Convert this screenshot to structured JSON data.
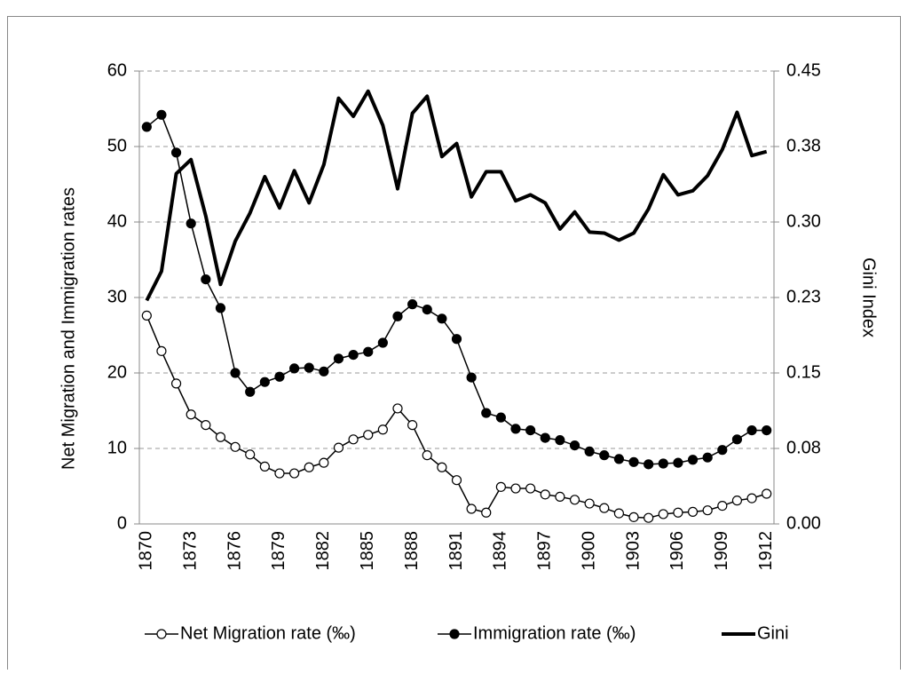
{
  "chart_data": {
    "type": "line",
    "categories": [
      "1870",
      null,
      null,
      "1873",
      null,
      null,
      "1876",
      null,
      null,
      "1879",
      null,
      null,
      "1882",
      null,
      null,
      "1885",
      null,
      null,
      "1888",
      null,
      null,
      "1891",
      null,
      null,
      "1894",
      null,
      null,
      "1897",
      null,
      null,
      "1900",
      null,
      null,
      "1903",
      null,
      null,
      "1906",
      null,
      null,
      "1909",
      null,
      null,
      "1912"
    ],
    "y_label": "Net Migration and Immigration rates",
    "y2_label": "Gini Index",
    "ylim": [
      0,
      60
    ],
    "yticks": [
      0,
      10,
      20,
      30,
      40,
      50,
      60
    ],
    "y2lim": [
      0,
      0.45
    ],
    "y2ticks": [
      {
        "value": 0,
        "label": "0.00"
      },
      {
        "value": 0.075,
        "label": "0.08"
      },
      0.15,
      {
        "value": 0.225,
        "label": "0.23"
      },
      {
        "value": 0.3,
        "label": "0.30"
      },
      {
        "value": 0.375,
        "label": "0.38"
      },
      0.45
    ],
    "grid": true,
    "legend": "bottom",
    "series": [
      {
        "name": "Net Migration rate (‰)",
        "color": "#000000",
        "marker": "open-circle",
        "line_width": 1.5,
        "values": [
          27.6,
          22.9,
          18.6,
          14.5,
          13.1,
          11.5,
          10.2,
          9.2,
          7.6,
          6.7,
          6.7,
          7.5,
          8.1,
          10.1,
          11.2,
          11.8,
          12.5,
          15.3,
          13.1,
          9.1,
          7.5,
          5.8,
          2.0,
          1.5,
          4.9,
          4.7,
          4.7,
          3.9,
          3.6,
          3.2,
          2.7,
          2.1,
          1.4,
          0.9,
          0.8,
          1.3,
          1.5,
          1.6,
          1.8,
          2.4,
          3.1,
          3.4,
          4.0
        ]
      },
      {
        "name": "Immigration rate (‰)",
        "color": "#000000",
        "marker": "filled-circle",
        "line_width": 1.5,
        "values": [
          52.6,
          54.2,
          49.2,
          39.8,
          32.4,
          28.6,
          20.0,
          17.5,
          18.8,
          19.5,
          20.6,
          20.7,
          20.2,
          21.9,
          22.4,
          22.8,
          24.0,
          27.5,
          29.1,
          28.4,
          27.2,
          24.5,
          19.4,
          14.7,
          14.1,
          12.6,
          12.4,
          11.4,
          11.1,
          10.4,
          9.6,
          9.1,
          8.6,
          8.2,
          7.9,
          8.0,
          8.1,
          8.5,
          8.8,
          9.8,
          11.2,
          12.4,
          12.4
        ]
      },
      {
        "name": "Gini",
        "color": "#000000",
        "marker": "none",
        "line_width": 4,
        "axis": "y2",
        "values": [
          0.222,
          0.251,
          0.348,
          0.362,
          0.306,
          0.238,
          0.281,
          0.309,
          0.345,
          0.314,
          0.351,
          0.319,
          0.357,
          0.423,
          0.405,
          0.43,
          0.396,
          0.333,
          0.408,
          0.425,
          0.365,
          0.378,
          0.325,
          0.35,
          0.35,
          0.321,
          0.327,
          0.319,
          0.293,
          0.31,
          0.29,
          0.289,
          0.282,
          0.289,
          0.313,
          0.347,
          0.327,
          0.331,
          0.346,
          0.372,
          0.409,
          0.366,
          0.37
        ]
      }
    ]
  }
}
